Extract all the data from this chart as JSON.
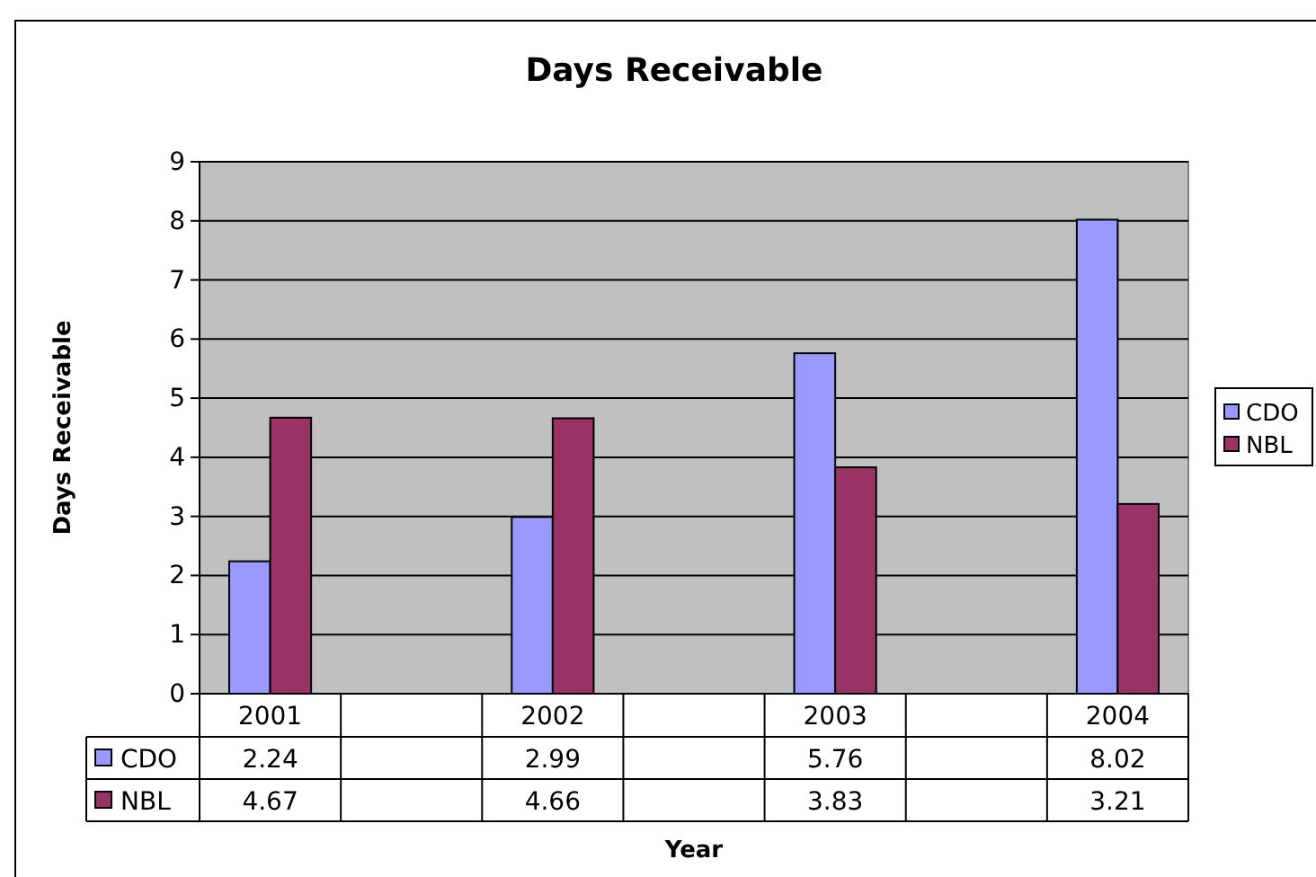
{
  "chart_data": {
    "type": "bar",
    "title": "Days Receivable",
    "xlabel": "Year",
    "ylabel": "Days Receivable",
    "categories": [
      "2001",
      null,
      "2002",
      null,
      "2003",
      null,
      "2004"
    ],
    "series": [
      {
        "name": "CDO",
        "color": "#9999ff",
        "values": [
          2.24,
          null,
          2.99,
          null,
          5.76,
          null,
          8.02
        ]
      },
      {
        "name": "NBL",
        "color": "#993366",
        "values": [
          4.67,
          null,
          4.66,
          null,
          3.83,
          null,
          3.21
        ]
      }
    ],
    "ylim": [
      0,
      9
    ],
    "yticks": [
      0,
      1,
      2,
      3,
      4,
      5,
      6,
      7,
      8,
      9
    ],
    "grid": "y",
    "legend": "right",
    "data_labels": true
  }
}
